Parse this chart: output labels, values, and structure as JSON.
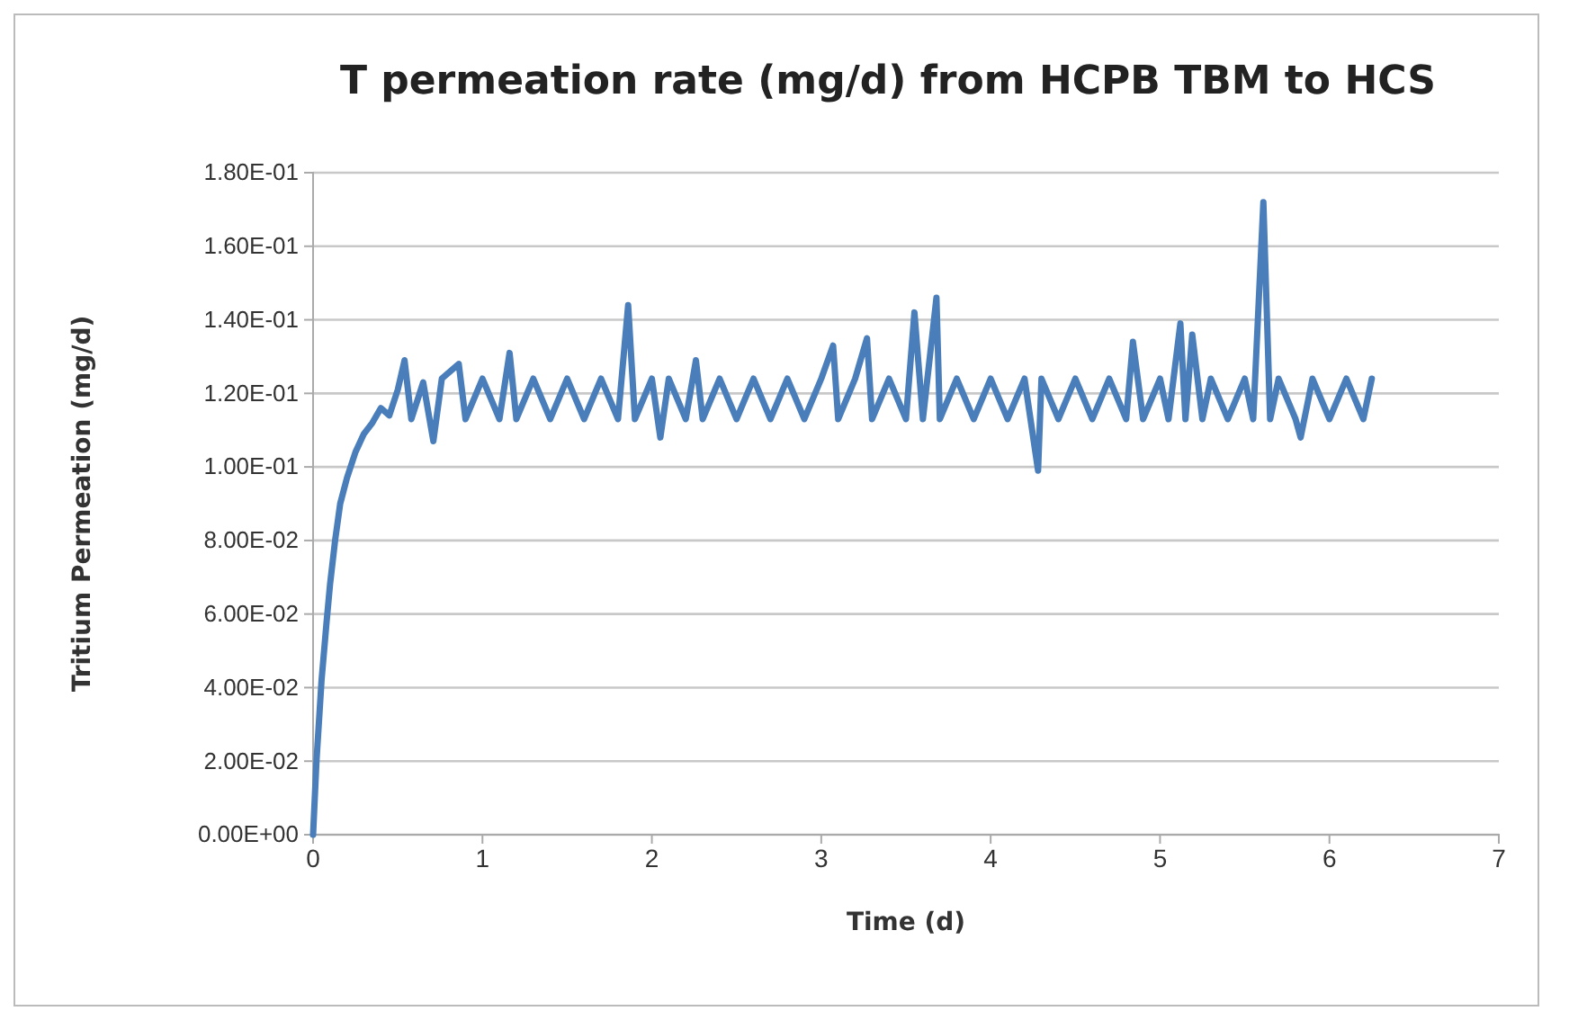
{
  "chart_data": {
    "type": "line",
    "title": "T permeation rate (mg/d) from HCPB TBM to HCS",
    "xlabel": "Time (d)",
    "ylabel": "Tritium  Permeation  (mg/d)",
    "xlim": [
      0,
      7
    ],
    "xticks": [
      0,
      1,
      2,
      3,
      4,
      5,
      6,
      7
    ],
    "ylim": [
      0,
      0.18
    ],
    "yticks": [
      {
        "value": 0,
        "label": "0.00E+00"
      },
      {
        "value": 0.02,
        "label": "2.00E-02"
      },
      {
        "value": 0.04,
        "label": "4.00E-02"
      },
      {
        "value": 0.06,
        "label": "6.00E-02"
      },
      {
        "value": 0.08,
        "label": "8.00E-02"
      },
      {
        "value": 0.1,
        "label": "1.00E-01"
      },
      {
        "value": 0.12,
        "label": "1.20E-01"
      },
      {
        "value": 0.14,
        "label": "1.40E-01"
      },
      {
        "value": 0.16,
        "label": "1.60E-01"
      },
      {
        "value": 0.18,
        "label": "1.80E-01"
      }
    ],
    "grid": "y",
    "marker": "none",
    "line_style": "solid",
    "series": [
      {
        "color": "#4a7ebb",
        "x": [
          0,
          0.02,
          0.05,
          0.08,
          0.1,
          0.13,
          0.16,
          0.2,
          0.25,
          0.3,
          0.35,
          0.4,
          0.45,
          0.5,
          0.54,
          0.58,
          0.65,
          0.71,
          0.76,
          0.86,
          0.9,
          1.0,
          1.1,
          1.16,
          1.2,
          1.3,
          1.4,
          1.5,
          1.6,
          1.7,
          1.8,
          1.86,
          1.9,
          2.0,
          2.05,
          2.1,
          2.2,
          2.26,
          2.3,
          2.4,
          2.5,
          2.6,
          2.7,
          2.8,
          2.9,
          3.0,
          3.07,
          3.1,
          3.2,
          3.27,
          3.3,
          3.4,
          3.5,
          3.55,
          3.6,
          3.68,
          3.7,
          3.8,
          3.9,
          4.0,
          4.1,
          4.2,
          4.28,
          4.3,
          4.4,
          4.5,
          4.6,
          4.7,
          4.8,
          4.84,
          4.9,
          5.0,
          5.05,
          5.12,
          5.15,
          5.19,
          5.25,
          5.3,
          5.4,
          5.5,
          5.55,
          5.61,
          5.65,
          5.7,
          5.8,
          5.83,
          5.9,
          6.0,
          6.1,
          6.2,
          6.25
        ],
        "values": [
          0,
          0.02,
          0.042,
          0.058,
          0.068,
          0.08,
          0.09,
          0.097,
          0.104,
          0.109,
          0.112,
          0.116,
          0.114,
          0.121,
          0.129,
          0.113,
          0.123,
          0.107,
          0.124,
          0.128,
          0.113,
          0.124,
          0.113,
          0.131,
          0.113,
          0.124,
          0.113,
          0.124,
          0.113,
          0.124,
          0.113,
          0.144,
          0.113,
          0.124,
          0.108,
          0.124,
          0.113,
          0.129,
          0.113,
          0.124,
          0.113,
          0.124,
          0.113,
          0.124,
          0.113,
          0.124,
          0.133,
          0.113,
          0.124,
          0.135,
          0.113,
          0.124,
          0.113,
          0.142,
          0.113,
          0.146,
          0.113,
          0.124,
          0.113,
          0.124,
          0.113,
          0.124,
          0.099,
          0.124,
          0.113,
          0.124,
          0.113,
          0.124,
          0.113,
          0.134,
          0.113,
          0.124,
          0.113,
          0.139,
          0.113,
          0.136,
          0.113,
          0.124,
          0.113,
          0.124,
          0.113,
          0.172,
          0.113,
          0.124,
          0.113,
          0.108,
          0.124,
          0.113,
          0.124,
          0.113,
          0.124
        ]
      }
    ]
  }
}
